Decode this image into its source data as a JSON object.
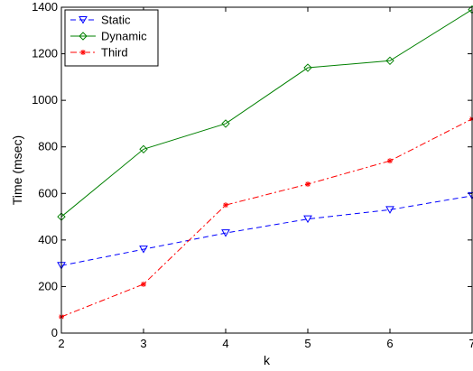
{
  "chart_data": {
    "type": "line",
    "x": [
      2,
      3,
      4,
      5,
      6,
      7
    ],
    "xlim": [
      2,
      7
    ],
    "ylim": [
      0,
      1400
    ],
    "xticks": [
      "2",
      "3",
      "4",
      "5",
      "6",
      "7"
    ],
    "yticks": [
      "0",
      "200",
      "400",
      "600",
      "800",
      "1000",
      "1200",
      "1400"
    ],
    "xlabel": "k",
    "ylabel": "Time (msec)",
    "grid": false,
    "legend_position": "top-left",
    "series": [
      {
        "name": "Static",
        "values": [
          290,
          360,
          430,
          490,
          530,
          590
        ],
        "color": "#0000ff",
        "dash": "dashed",
        "marker": "triangle-down"
      },
      {
        "name": "Dynamic",
        "values": [
          500,
          790,
          900,
          1140,
          1170,
          1390
        ],
        "color": "#008000",
        "dash": "solid",
        "marker": "diamond"
      },
      {
        "name": "Third",
        "values": [
          70,
          210,
          550,
          640,
          740,
          920
        ],
        "color": "#ff0000",
        "dash": "dashdot",
        "marker": "star"
      }
    ]
  }
}
